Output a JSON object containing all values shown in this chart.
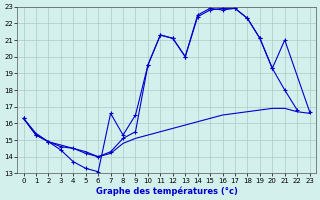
{
  "title": "Graphe des températures (°c)",
  "bg_color": "#d4f0ec",
  "grid_color": "#b0c8c4",
  "line_color": "#0000cc",
  "xlim": [
    -0.5,
    23.5
  ],
  "ylim": [
    13,
    23
  ],
  "xticks": [
    0,
    1,
    2,
    3,
    4,
    5,
    6,
    7,
    8,
    9,
    10,
    11,
    12,
    13,
    14,
    15,
    16,
    17,
    18,
    19,
    20,
    21,
    22,
    23
  ],
  "yticks": [
    13,
    14,
    15,
    16,
    17,
    18,
    19,
    20,
    21,
    22,
    23
  ],
  "series": [
    {
      "x": [
        0,
        1,
        2,
        3,
        4,
        5,
        6,
        7,
        8,
        9,
        10,
        11,
        12,
        13,
        14,
        15,
        16,
        17,
        18,
        19,
        20,
        21,
        22
      ],
      "y": [
        16.3,
        15.3,
        14.9,
        14.4,
        13.7,
        13.3,
        13.1,
        16.6,
        15.3,
        16.5,
        19.5,
        21.3,
        21.1,
        20.0,
        22.5,
        22.9,
        22.8,
        22.9,
        22.3,
        21.1,
        19.3,
        18.0,
        16.8
      ],
      "marker": true
    },
    {
      "x": [
        0,
        1,
        2,
        3,
        4,
        5,
        6,
        7,
        8,
        9,
        10,
        11,
        12,
        13,
        14,
        15,
        16,
        17,
        18,
        19,
        20,
        21,
        22,
        23
      ],
      "y": [
        16.3,
        15.4,
        14.9,
        14.7,
        14.5,
        14.3,
        14.0,
        14.2,
        14.8,
        15.1,
        15.3,
        15.5,
        15.7,
        15.9,
        16.1,
        16.3,
        16.5,
        16.6,
        16.7,
        16.8,
        16.9,
        16.9,
        16.7,
        16.6
      ],
      "marker": false
    },
    {
      "x": [
        0,
        1,
        2,
        3,
        4,
        5,
        6,
        7,
        8,
        9,
        10,
        11,
        12,
        13,
        14,
        15,
        16,
        17,
        18,
        19,
        20,
        21,
        23
      ],
      "y": [
        16.3,
        15.3,
        14.9,
        14.6,
        14.5,
        14.2,
        14.0,
        14.3,
        15.1,
        15.5,
        19.5,
        21.3,
        21.1,
        20.0,
        22.4,
        22.8,
        22.9,
        22.9,
        22.3,
        21.1,
        19.3,
        21.0,
        16.7
      ],
      "marker": true
    }
  ]
}
